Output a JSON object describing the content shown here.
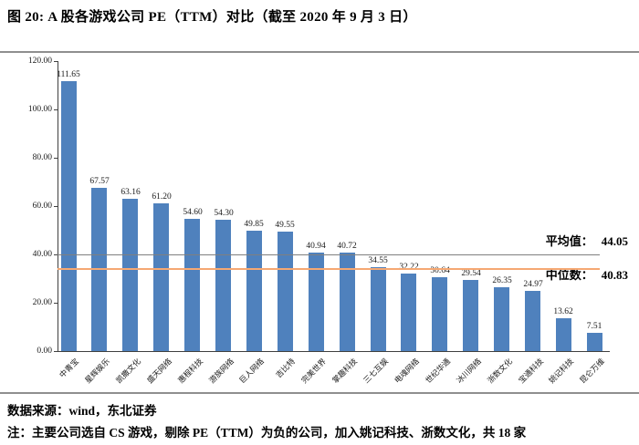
{
  "figure": {
    "title": "图 20: A 股各游戏公司 PE（TTM）对比（截至 2020 年 9 月 3 日）"
  },
  "chart_data": {
    "type": "bar",
    "title": "A 股各游戏公司 PE（TTM）对比（截至 2020 年 9 月 3 日）",
    "categories": [
      "中青宝",
      "星辉娱乐",
      "凯撒文化",
      "盛天网络",
      "惠程科技",
      "游族网络",
      "巨人网络",
      "吉比特",
      "完美世界",
      "掌趣科技",
      "三七互娱",
      "电魂网络",
      "世纪华通",
      "冰川网络",
      "浙数文化",
      "宝通科技",
      "姚记科技",
      "昆仑万维"
    ],
    "values": [
      111.65,
      67.57,
      63.16,
      61.2,
      54.6,
      54.3,
      49.85,
      49.55,
      40.94,
      40.72,
      34.55,
      32.22,
      30.64,
      29.54,
      26.35,
      24.97,
      13.62,
      7.51
    ],
    "xlabel": "",
    "ylabel": "",
    "ylim": [
      0,
      120
    ],
    "ytick_step": 20,
    "ytick_decimals": 2,
    "value_label_decimals": 2,
    "grid": false,
    "legend": "none",
    "bar_color": "#4F81BD",
    "annotations": [
      {
        "name": "average",
        "label": "平均值：",
        "value": "44.05",
        "line_color": "#7F7F7F",
        "line_level": 40.0
      },
      {
        "name": "median",
        "label": "中位数：",
        "value": "40.83",
        "line_color": "#F5A873",
        "line_level": 34.4
      }
    ]
  },
  "footer": {
    "source": "数据来源：wind，东北证券",
    "note": "注：主要公司选自 CS 游戏，剔除 PE（TTM）为负的公司，加入姚记科技、浙数文化，共 18 家"
  }
}
